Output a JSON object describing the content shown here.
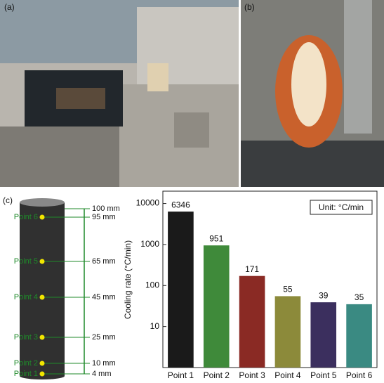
{
  "panels": [
    "(a)",
    "(b)",
    "(c)"
  ],
  "diagram": {
    "top_label": "100 mm",
    "points": [
      {
        "label": "Point 6",
        "height": "95 mm"
      },
      {
        "label": "Point 5",
        "height": "65 mm"
      },
      {
        "label": "Point 4",
        "height": "45 mm"
      },
      {
        "label": "Point 3",
        "height": "25 mm"
      },
      {
        "label": "Point 2",
        "height": "10 mm"
      },
      {
        "label": "Point 1",
        "height": "4 mm"
      }
    ]
  },
  "chart_data": {
    "type": "bar",
    "ylabel": "Cooling rate (°C/min)",
    "annotation": "Unit: °C/min",
    "categories": [
      "Point 1",
      "Point 2",
      "Point 3",
      "Point 4",
      "Point 5",
      "Point 6"
    ],
    "values": [
      6346,
      951,
      171,
      55,
      39,
      35
    ],
    "colors": [
      "#1a1a1a",
      "#3f8a3a",
      "#8a2a24",
      "#8c8a3a",
      "#3b2f5e",
      "#3a8a82"
    ],
    "ylim": [
      1,
      20000
    ],
    "yticks": [
      10,
      100,
      1000,
      10000
    ],
    "log_scale": true
  }
}
